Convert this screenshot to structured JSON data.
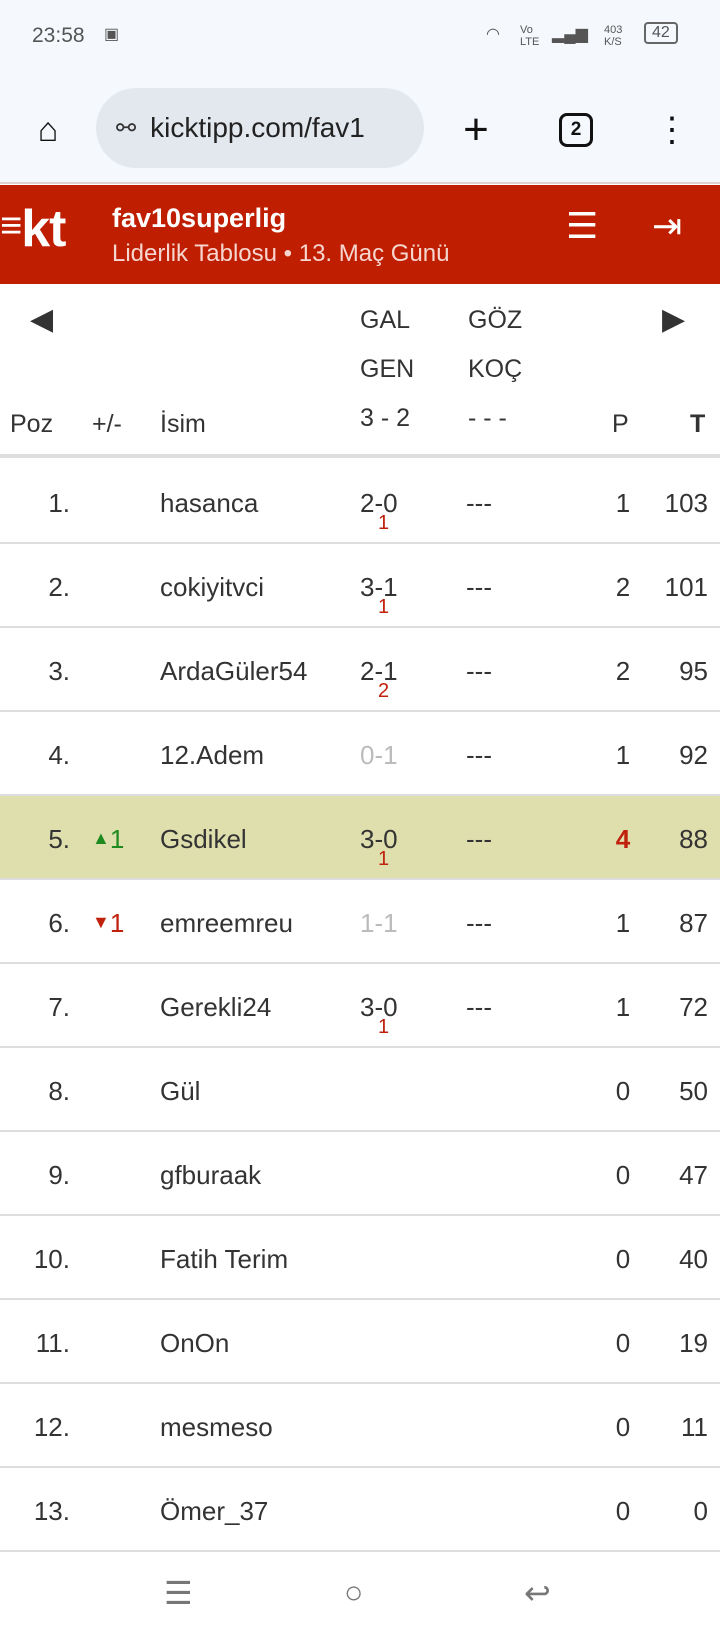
{
  "status_bar": {
    "time": "23:58",
    "network": "Vo LTE",
    "speed": "403 K/S",
    "battery": "42"
  },
  "browser": {
    "url": "kicktipp.com/fav1",
    "tab_count": "2"
  },
  "header": {
    "logo": "kt",
    "title": "fav10superlig",
    "subtitle": "Liderlik Tablosu • 13. Maç Günü",
    "brand_color": "#bf1e00"
  },
  "table": {
    "headers": {
      "pos": "Poz",
      "change": "+/-",
      "name": "İsim",
      "match1_home": "GAL",
      "match1_away": "GEN",
      "match1_result": "3 - 2",
      "match2_home": "GÖZ",
      "match2_away": "KOÇ",
      "match2_result": "- - -",
      "points": "P",
      "total": "T"
    },
    "rows": [
      {
        "pos": "1.",
        "change": "",
        "dir": "",
        "name": "hasanca",
        "tip": "2-0",
        "tip_pts": "1",
        "tip_grey": false,
        "tip2": "---",
        "p": "1",
        "t": "103"
      },
      {
        "pos": "2.",
        "change": "",
        "dir": "",
        "name": "cokiyitvci",
        "tip": "3-1",
        "tip_pts": "1",
        "tip_grey": false,
        "tip2": "---",
        "p": "2",
        "t": "101"
      },
      {
        "pos": "3.",
        "change": "",
        "dir": "",
        "name": "ArdaGüler54",
        "tip": "2-1",
        "tip_pts": "2",
        "tip_grey": false,
        "tip2": "---",
        "p": "2",
        "t": "95"
      },
      {
        "pos": "4.",
        "change": "",
        "dir": "",
        "name": "12.Adem",
        "tip": "0-1",
        "tip_pts": "",
        "tip_grey": true,
        "tip2": "---",
        "p": "1",
        "t": "92"
      },
      {
        "pos": "5.",
        "change": "1",
        "dir": "up",
        "name": "Gsdikel",
        "tip": "3-0",
        "tip_pts": "1",
        "tip_grey": false,
        "tip2": "---",
        "p": "4",
        "t": "88",
        "highlight": true
      },
      {
        "pos": "6.",
        "change": "1",
        "dir": "down",
        "name": "emreemreu",
        "tip": "1-1",
        "tip_pts": "",
        "tip_grey": true,
        "tip2": "---",
        "p": "1",
        "t": "87"
      },
      {
        "pos": "7.",
        "change": "",
        "dir": "",
        "name": "Gerekli24",
        "tip": "3-0",
        "tip_pts": "1",
        "tip_grey": false,
        "tip2": "---",
        "p": "1",
        "t": "72"
      },
      {
        "pos": "8.",
        "change": "",
        "dir": "",
        "name": "Gül",
        "tip": "",
        "tip_pts": "",
        "tip_grey": false,
        "tip2": "",
        "p": "0",
        "t": "50"
      },
      {
        "pos": "9.",
        "change": "",
        "dir": "",
        "name": "gfburaak",
        "tip": "",
        "tip_pts": "",
        "tip_grey": false,
        "tip2": "",
        "p": "0",
        "t": "47"
      },
      {
        "pos": "10.",
        "change": "",
        "dir": "",
        "name": "Fatih Terim",
        "tip": "",
        "tip_pts": "",
        "tip_grey": false,
        "tip2": "",
        "p": "0",
        "t": "40"
      },
      {
        "pos": "11.",
        "change": "",
        "dir": "",
        "name": "OnOn",
        "tip": "",
        "tip_pts": "",
        "tip_grey": false,
        "tip2": "",
        "p": "0",
        "t": "19"
      },
      {
        "pos": "12.",
        "change": "",
        "dir": "",
        "name": "mesmeso",
        "tip": "",
        "tip_pts": "",
        "tip_grey": false,
        "tip2": "",
        "p": "0",
        "t": "11"
      },
      {
        "pos": "13.",
        "change": "",
        "dir": "",
        "name": "Ömer_37",
        "tip": "",
        "tip_pts": "",
        "tip_grey": false,
        "tip2": "",
        "p": "0",
        "t": "0"
      }
    ]
  }
}
